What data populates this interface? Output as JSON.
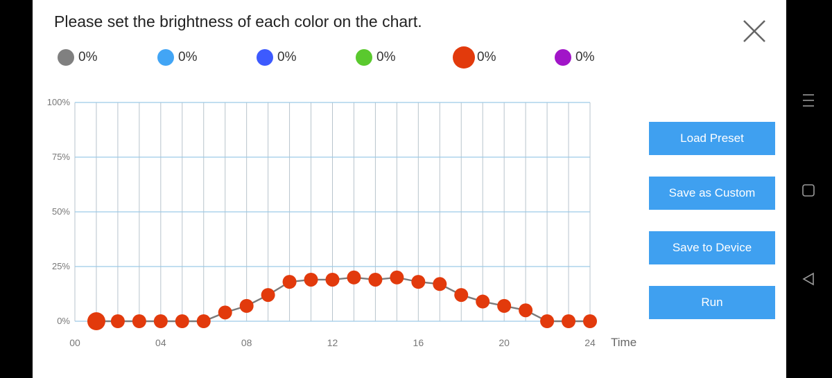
{
  "dialog": {
    "title": "Please set the brightness of each color on the chart."
  },
  "legend": [
    {
      "color": "#808080",
      "value": "0%",
      "selected": false
    },
    {
      "color": "#42a5f5",
      "value": "0%",
      "selected": false
    },
    {
      "color": "#3d5afe",
      "value": "0%",
      "selected": false
    },
    {
      "color": "#5ac92e",
      "value": "0%",
      "selected": false
    },
    {
      "color": "#e23a0c",
      "value": "0%",
      "selected": true
    },
    {
      "color": "#a115c8",
      "value": "0%",
      "selected": false
    }
  ],
  "buttons": {
    "load_preset": "Load Preset",
    "save_custom": "Save as Custom",
    "save_device": "Save to Device",
    "run": "Run"
  },
  "chart_data": {
    "type": "line",
    "xlabel": "Time",
    "x_ticks": [
      "00",
      "04",
      "08",
      "12",
      "16",
      "20",
      "24"
    ],
    "y_ticks": [
      "0%",
      "25%",
      "50%",
      "75%",
      "100%"
    ],
    "xlim": [
      0,
      24
    ],
    "ylim": [
      0,
      100
    ],
    "series": [
      {
        "color": "#e23a0c",
        "x": [
          1,
          2,
          3,
          4,
          5,
          6,
          7,
          8,
          9,
          10,
          11,
          12,
          13,
          14,
          15,
          16,
          17,
          18,
          19,
          20,
          21,
          22,
          23,
          24
        ],
        "values": [
          0,
          0,
          0,
          0,
          0,
          0,
          4,
          7,
          12,
          18,
          19,
          19,
          20,
          19,
          20,
          18,
          17,
          12,
          9,
          7,
          5,
          0,
          0,
          0
        ]
      }
    ]
  },
  "navbar": {
    "menu_icon": "menu-icon",
    "home_icon": "square-icon",
    "back_icon": "back-triangle-icon"
  }
}
